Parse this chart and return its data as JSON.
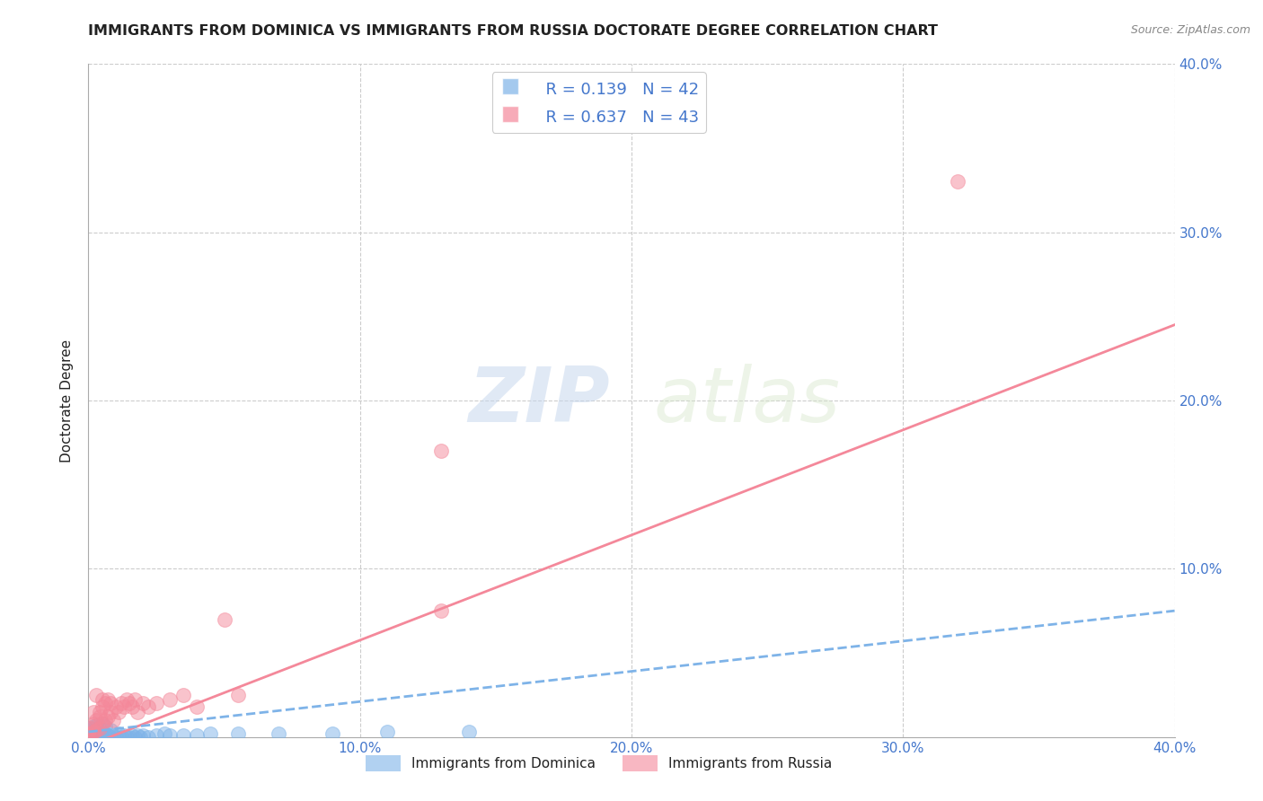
{
  "title": "IMMIGRANTS FROM DOMINICA VS IMMIGRANTS FROM RUSSIA DOCTORATE DEGREE CORRELATION CHART",
  "source_text": "Source: ZipAtlas.com",
  "ylabel": "Doctorate Degree",
  "xlim": [
    0.0,
    0.4
  ],
  "ylim": [
    0.0,
    0.4
  ],
  "dominica_color": "#7EB3E8",
  "russia_color": "#F4889A",
  "dominica_R": 0.139,
  "dominica_N": 42,
  "russia_R": 0.637,
  "russia_N": 43,
  "watermark_zip": "ZIP",
  "watermark_atlas": "atlas",
  "background_color": "#ffffff",
  "grid_color": "#cccccc",
  "title_color": "#222222",
  "tick_color": "#4477CC",
  "dominica_scatter": [
    [
      0.0,
      0.0
    ],
    [
      0.001,
      0.0
    ],
    [
      0.002,
      0.0
    ],
    [
      0.003,
      0.0
    ],
    [
      0.003,
      0.002
    ],
    [
      0.004,
      0.0
    ],
    [
      0.005,
      0.001
    ],
    [
      0.006,
      0.0
    ],
    [
      0.007,
      0.001
    ],
    [
      0.008,
      0.0
    ],
    [
      0.009,
      0.001
    ],
    [
      0.01,
      0.0
    ],
    [
      0.011,
      0.002
    ],
    [
      0.012,
      0.0
    ],
    [
      0.013,
      0.001
    ],
    [
      0.014,
      0.0
    ],
    [
      0.015,
      0.0
    ],
    [
      0.016,
      0.001
    ],
    [
      0.017,
      0.0
    ],
    [
      0.018,
      0.001
    ],
    [
      0.019,
      0.0
    ],
    [
      0.02,
      0.001
    ],
    [
      0.022,
      0.0
    ],
    [
      0.025,
      0.001
    ],
    [
      0.028,
      0.002
    ],
    [
      0.03,
      0.001
    ],
    [
      0.035,
      0.001
    ],
    [
      0.04,
      0.001
    ],
    [
      0.045,
      0.002
    ],
    [
      0.055,
      0.002
    ],
    [
      0.07,
      0.002
    ],
    [
      0.09,
      0.002
    ],
    [
      0.11,
      0.003
    ],
    [
      0.14,
      0.003
    ],
    [
      0.0,
      0.004
    ],
    [
      0.001,
      0.005
    ],
    [
      0.002,
      0.006
    ],
    [
      0.003,
      0.007
    ],
    [
      0.004,
      0.005
    ],
    [
      0.005,
      0.008
    ],
    [
      0.006,
      0.006
    ],
    [
      0.008,
      0.004
    ]
  ],
  "russia_scatter": [
    [
      0.0,
      0.0
    ],
    [
      0.001,
      0.002
    ],
    [
      0.002,
      0.003
    ],
    [
      0.002,
      0.008
    ],
    [
      0.003,
      0.004
    ],
    [
      0.003,
      0.01
    ],
    [
      0.004,
      0.005
    ],
    [
      0.004,
      0.015
    ],
    [
      0.005,
      0.008
    ],
    [
      0.005,
      0.018
    ],
    [
      0.006,
      0.01
    ],
    [
      0.006,
      0.02
    ],
    [
      0.007,
      0.012
    ],
    [
      0.007,
      0.022
    ],
    [
      0.008,
      0.015
    ],
    [
      0.008,
      0.02
    ],
    [
      0.009,
      0.01
    ],
    [
      0.01,
      0.018
    ],
    [
      0.011,
      0.015
    ],
    [
      0.012,
      0.02
    ],
    [
      0.013,
      0.018
    ],
    [
      0.014,
      0.022
    ],
    [
      0.015,
      0.02
    ],
    [
      0.016,
      0.018
    ],
    [
      0.017,
      0.022
    ],
    [
      0.018,
      0.015
    ],
    [
      0.02,
      0.02
    ],
    [
      0.022,
      0.018
    ],
    [
      0.025,
      0.02
    ],
    [
      0.03,
      0.022
    ],
    [
      0.035,
      0.025
    ],
    [
      0.04,
      0.018
    ],
    [
      0.05,
      0.07
    ],
    [
      0.055,
      0.025
    ],
    [
      0.13,
      0.17
    ],
    [
      0.13,
      0.075
    ],
    [
      0.0,
      0.002
    ],
    [
      0.001,
      0.005
    ],
    [
      0.002,
      0.015
    ],
    [
      0.003,
      0.025
    ],
    [
      0.004,
      0.012
    ],
    [
      0.005,
      0.022
    ],
    [
      0.32,
      0.33
    ]
  ],
  "russia_line": {
    "x0": 0.0,
    "y0": -0.005,
    "x1": 0.4,
    "y1": 0.245
  },
  "dominica_line": {
    "x0": 0.0,
    "y0": 0.003,
    "x1": 0.4,
    "y1": 0.075
  }
}
